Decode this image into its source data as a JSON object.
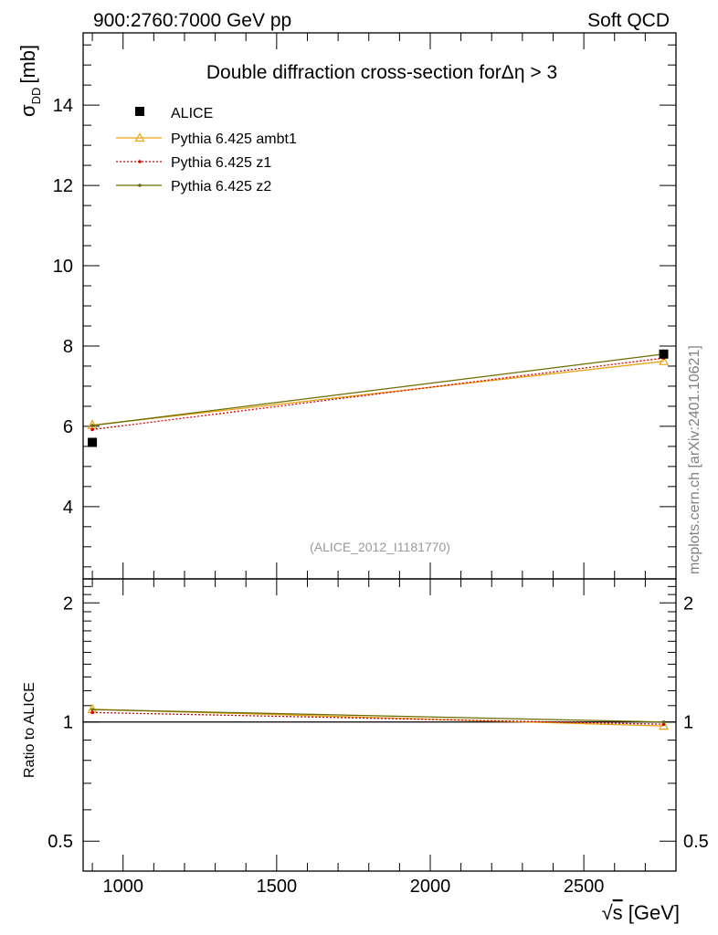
{
  "header": {
    "energies": "900:2760:7000 GeV pp",
    "category": "Soft QCD"
  },
  "side_label": "mcplots.cern.ch [arXiv:2401.10621]",
  "chart_data": [
    {
      "type": "line",
      "panel": "main",
      "title": "Double diffraction cross-section forΔη > 3",
      "ylabel_main": "σ",
      "ylabel_sub": "DD",
      "ylabel_unit": "[mb]",
      "analysis_tag": "(ALICE_2012_I1181770)",
      "xlim": [
        870,
        2800
      ],
      "ylim": [
        2.2,
        15.8
      ],
      "yticks": [
        4,
        6,
        8,
        10,
        12,
        14
      ],
      "ytick_labels": [
        "4",
        "6",
        "8",
        "10",
        "12",
        "14"
      ],
      "legend_position": "top-left",
      "data": {
        "name": "ALICE",
        "x": [
          900,
          2760
        ],
        "y": [
          5.6,
          7.8
        ],
        "color": "#000000"
      },
      "series": [
        {
          "name": "Pythia 6.425 ambt1",
          "x": [
            900,
            2760
          ],
          "y": [
            6.03,
            7.62
          ],
          "color": "#e8a317",
          "style": "solid",
          "marker": "triangle"
        },
        {
          "name": "Pythia 6.425 z1",
          "x": [
            900,
            2760
          ],
          "y": [
            5.92,
            7.7
          ],
          "color": "#dd0000",
          "style": "dotted",
          "marker": "dot"
        },
        {
          "name": "Pythia 6.425 z2",
          "x": [
            900,
            2760
          ],
          "y": [
            6.02,
            7.8
          ],
          "color": "#6b6b00",
          "style": "solid",
          "marker": "dot"
        }
      ]
    },
    {
      "type": "line",
      "panel": "ratio",
      "ylabel": "Ratio to ALICE",
      "xlabel_root": "√",
      "xlabel_var": "s",
      "xlabel_unit": " [GeV]",
      "xlim": [
        870,
        2800
      ],
      "ylim": [
        0.42,
        2.3
      ],
      "log_y": true,
      "xticks": [
        1000,
        1500,
        2000,
        2500
      ],
      "xtick_labels": [
        "1000",
        "1500",
        "2000",
        "2500"
      ],
      "yticks": [
        0.5,
        1,
        2
      ],
      "ytick_labels": [
        "0.5",
        "1",
        "2"
      ],
      "reference": 1.0,
      "series": [
        {
          "name": "Pythia 6.425 ambt1",
          "x": [
            900,
            2760
          ],
          "y": [
            1.077,
            0.977
          ],
          "color": "#e8a317",
          "style": "solid",
          "marker": "triangle"
        },
        {
          "name": "Pythia 6.425 z1",
          "x": [
            900,
            2760
          ],
          "y": [
            1.057,
            0.987
          ],
          "color": "#dd0000",
          "style": "dotted",
          "marker": "dot"
        },
        {
          "name": "Pythia 6.425 z2",
          "x": [
            900,
            2760
          ],
          "y": [
            1.075,
            1.0
          ],
          "color": "#6b6b00",
          "style": "solid",
          "marker": "dot"
        }
      ]
    }
  ]
}
